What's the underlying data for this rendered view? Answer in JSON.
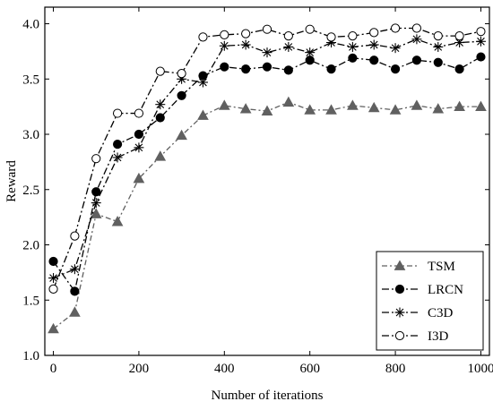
{
  "chart_data": {
    "type": "line",
    "xlabel": "Number of iterations",
    "ylabel": "Reward",
    "xlim": [
      -20,
      1020
    ],
    "ylim": [
      1.0,
      4.15
    ],
    "xticks": [
      0,
      200,
      400,
      600,
      800,
      1000
    ],
    "xtick_labels": [
      "0",
      "200",
      "400",
      "600",
      "800",
      "1000"
    ],
    "yticks": [
      1.0,
      1.5,
      2.0,
      2.5,
      3.0,
      3.5,
      4.0
    ],
    "ytick_labels": [
      "1.0",
      "1.5",
      "2.0",
      "2.5",
      "3.0",
      "3.5",
      "4.0"
    ],
    "grid": false,
    "legend_position": "bottom-right",
    "x": [
      0,
      50,
      100,
      150,
      200,
      250,
      300,
      350,
      400,
      450,
      500,
      550,
      600,
      650,
      700,
      750,
      800,
      850,
      900,
      950,
      1000
    ],
    "series": [
      {
        "name": "TSM",
        "marker": "triangle",
        "color": "#606060",
        "values": [
          1.24,
          1.39,
          2.28,
          2.21,
          2.6,
          2.8,
          2.99,
          3.17,
          3.26,
          3.23,
          3.21,
          3.29,
          3.22,
          3.22,
          3.26,
          3.24,
          3.22,
          3.26,
          3.23,
          3.25,
          3.25
        ]
      },
      {
        "name": "LRCN",
        "marker": "filled-circle",
        "color": "#000000",
        "values": [
          1.85,
          1.58,
          2.48,
          2.91,
          3.0,
          3.15,
          3.35,
          3.53,
          3.61,
          3.59,
          3.61,
          3.58,
          3.67,
          3.59,
          3.69,
          3.67,
          3.59,
          3.67,
          3.65,
          3.59,
          3.7
        ]
      },
      {
        "name": "C3D",
        "marker": "asterisk",
        "color": "#000000",
        "values": [
          1.7,
          1.78,
          2.38,
          2.79,
          2.88,
          3.27,
          3.5,
          3.47,
          3.8,
          3.81,
          3.74,
          3.79,
          3.74,
          3.83,
          3.79,
          3.81,
          3.78,
          3.86,
          3.79,
          3.83,
          3.84
        ]
      },
      {
        "name": "I3D",
        "marker": "open-circle",
        "color": "#000000",
        "values": [
          1.6,
          2.08,
          2.78,
          3.19,
          3.19,
          3.57,
          3.55,
          3.88,
          3.9,
          3.91,
          3.95,
          3.89,
          3.95,
          3.88,
          3.89,
          3.92,
          3.96,
          3.96,
          3.89,
          3.89,
          3.93
        ]
      }
    ]
  }
}
